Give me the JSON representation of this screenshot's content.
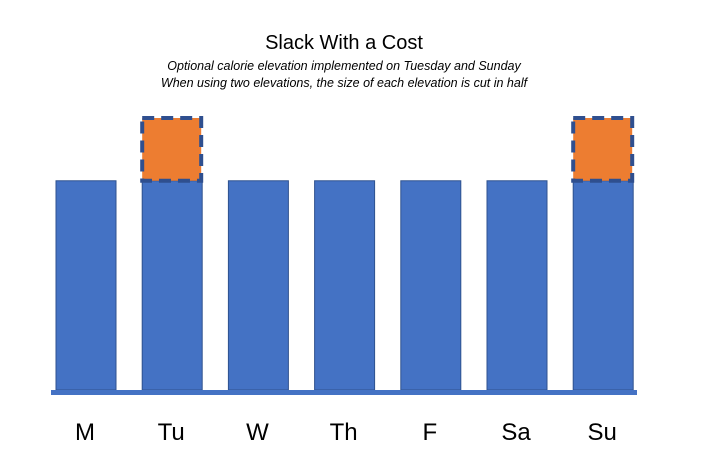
{
  "title": "Slack With a Cost",
  "subtitle_line1": "Optional calorie elevation implemented on Tuesday and Sunday",
  "subtitle_line2": "When using two elevations, the size of each elevation is cut in half",
  "colors": {
    "base_bar": "#4472C4",
    "base_bar_border": "#2F528F",
    "elevation": "#ED7D31",
    "elevation_border": "#2F4F8F",
    "baseline": "#4472C4"
  },
  "chart_data": {
    "type": "bar",
    "stacked": true,
    "categories": [
      "M",
      "Tu",
      "W",
      "Th",
      "F",
      "Sa",
      "Su"
    ],
    "series": [
      {
        "values": [
          1,
          1,
          1,
          1,
          1,
          1,
          1
        ]
      },
      {
        "values": [
          0,
          0.3,
          0,
          0,
          0,
          0,
          0.3
        ]
      }
    ],
    "elevation_style": "dashed-border",
    "axis": {
      "y_visible": false,
      "grid": false
    },
    "ylim": [
      0,
      1.3
    ]
  }
}
